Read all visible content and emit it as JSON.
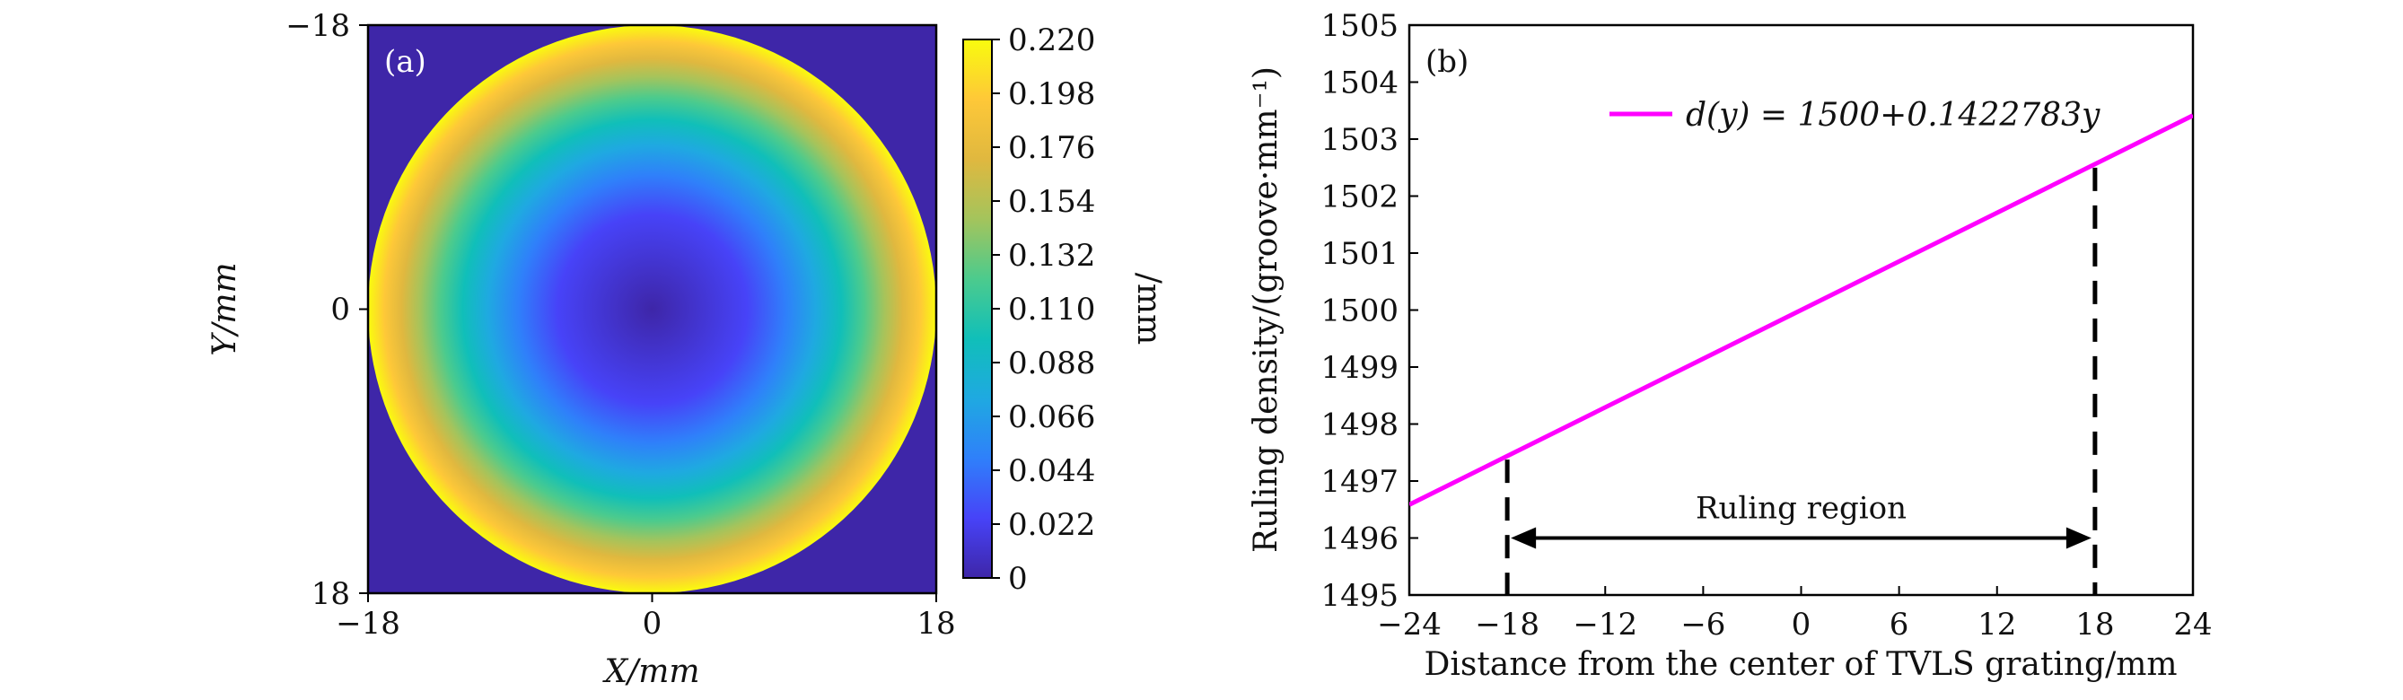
{
  "chart_data": [
    {
      "type": "heatmap",
      "panel_label": "(a)",
      "xlabel": "X/mm",
      "ylabel": "Y/mm",
      "x_ticks": [
        "−18",
        "0",
        "18"
      ],
      "y_ticks": [
        "−18",
        "0",
        "18"
      ],
      "xlim": [
        -18,
        18
      ],
      "ylim": [
        -18,
        18
      ],
      "colorbar_label": "/mm",
      "colorbar_ticks": [
        "0",
        "0.022",
        "0.044",
        "0.066",
        "0.088",
        "0.110",
        "0.132",
        "0.154",
        "0.176",
        "0.198",
        "0.220"
      ],
      "colorbar_range": [
        0,
        0.22
      ],
      "aperture_radius_mm": 18,
      "colormap": [
        "#3e26a8",
        "#4743f8",
        "#2f80fa",
        "#1fa9e1",
        "#10bfb9",
        "#4ccb8d",
        "#a4c45c",
        "#e0b83f",
        "#fec838",
        "#f9fb0e"
      ],
      "background_color": "#3e26a8"
    },
    {
      "type": "line",
      "panel_label": "(b)",
      "xlabel": "Distance from the center of TVLS grating/mm",
      "ylabel": "Ruling density/(groove·mm⁻¹)",
      "xlim": [
        -24,
        24
      ],
      "ylim": [
        1495,
        1505
      ],
      "x_ticks": [
        "−24",
        "−18",
        "−12",
        "−6",
        "0",
        "6",
        "12",
        "18",
        "24"
      ],
      "y_ticks": [
        "1495",
        "1496",
        "1497",
        "1498",
        "1499",
        "1500",
        "1501",
        "1502",
        "1503",
        "1504",
        "1505"
      ],
      "series": [
        {
          "name": "d(y) = 1500+0.1422783y",
          "x": [
            -24,
            24
          ],
          "y": [
            1496.585,
            1503.415
          ],
          "color": "#ff00ff"
        }
      ],
      "legend_label": "d(y) = 1500+0.1422783y",
      "legend_position": "top-center",
      "region_label": "Ruling region",
      "region_bounds": [
        -18,
        18
      ],
      "region_arrow_y": 1496.0,
      "dash_bottom": 1495
    }
  ]
}
